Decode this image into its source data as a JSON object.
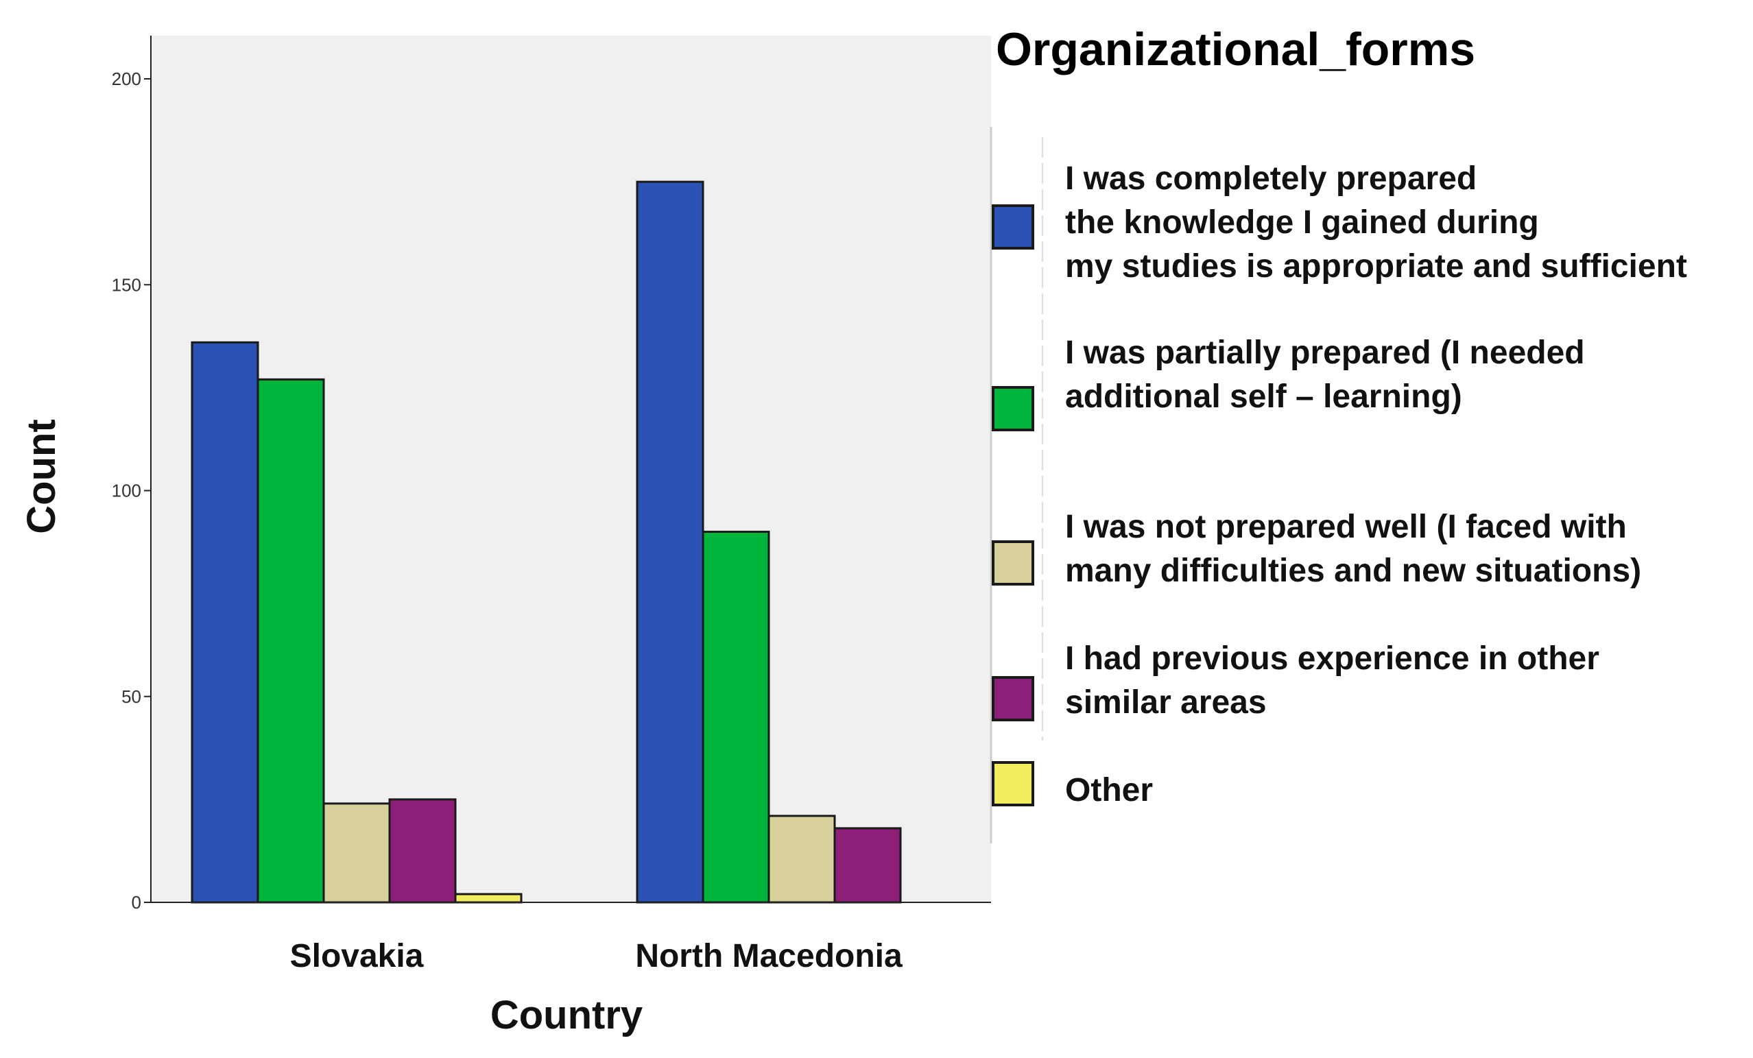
{
  "chart_data": {
    "type": "bar",
    "xlabel": "Country",
    "ylabel": "Count",
    "ylim": [
      0,
      210
    ],
    "yticks": [
      0,
      50,
      100,
      150,
      200
    ],
    "categories": [
      "Slovakia",
      "North Macedonia"
    ],
    "grid": false,
    "legend_position": "right",
    "legend_title": "Organizational_forms",
    "series": [
      {
        "name": "I was completely prepared\nthe knowledge I gained during\nmy studies is appropriate and sufficient",
        "color": "#2b52b4",
        "values": [
          136,
          175
        ]
      },
      {
        "name": "I was partially prepared (I needed\nadditional self – learning)",
        "color": "#00b43c",
        "values": [
          127,
          90
        ]
      },
      {
        "name": "I was not prepared well (I faced with\nmany difficulties and new situations)",
        "color": "#d8d09a",
        "values": [
          24,
          21
        ]
      },
      {
        "name": "I had previous experience in other\nsimilar areas",
        "color": "#8e1f78",
        "values": [
          25,
          18
        ]
      },
      {
        "name": "Other",
        "color": "#f2ec60",
        "values": [
          2,
          0
        ]
      }
    ],
    "plot_background": "#f0f0f0"
  }
}
